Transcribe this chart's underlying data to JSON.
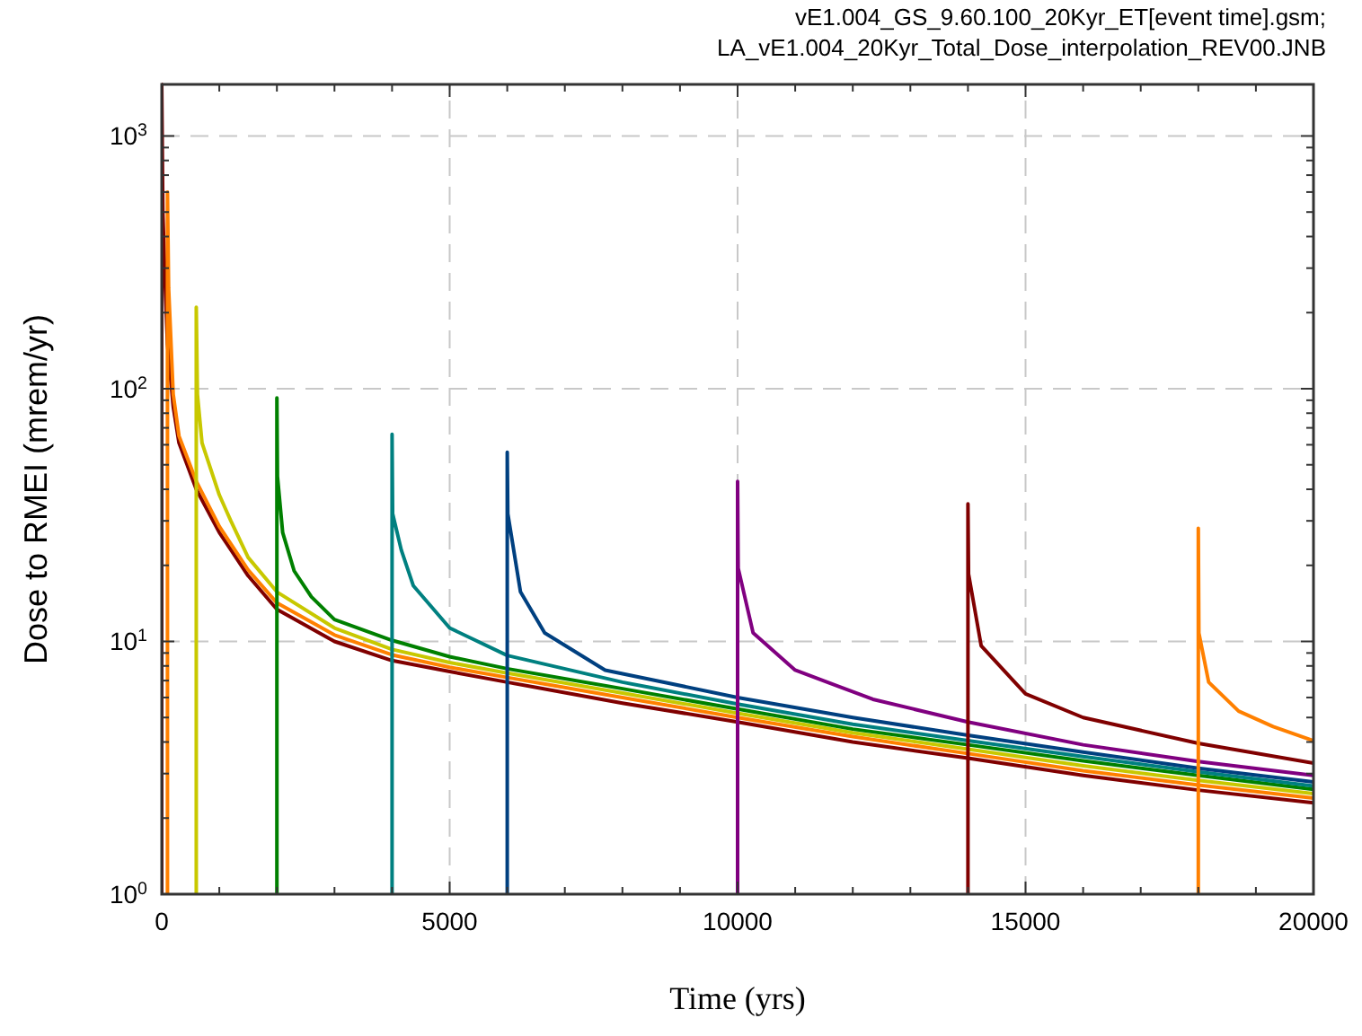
{
  "chart_data": {
    "type": "line",
    "title": "vE1.004_GS_9.60.100_20Kyr_ET[event time].gsm;",
    "subtitle": "LA_vE1.004_20Kyr_Total_Dose_interpolation_REV00.JNB",
    "xlabel": "Time (yrs)",
    "ylabel": "Dose to RMEI (mrem/yr)",
    "log": "y",
    "grid": true,
    "marker": "none",
    "line_style": "solid",
    "xlim": [
      0,
      20000
    ],
    "ylim": [
      1,
      1600
    ],
    "xticks": [
      0,
      {
        "value": 1000,
        "label": null
      },
      {
        "value": 2000,
        "label": null
      },
      {
        "value": 3000,
        "label": null
      },
      {
        "value": 4000,
        "label": null
      },
      5000,
      {
        "value": 6000,
        "label": null
      },
      {
        "value": 7000,
        "label": null
      },
      {
        "value": 8000,
        "label": null
      },
      {
        "value": 9000,
        "label": null
      },
      10000,
      {
        "value": 11000,
        "label": null
      },
      {
        "value": 12000,
        "label": null
      },
      {
        "value": 13000,
        "label": null
      },
      {
        "value": 14000,
        "label": null
      },
      15000,
      {
        "value": 16000,
        "label": null
      },
      {
        "value": 17000,
        "label": null
      },
      {
        "value": 18000,
        "label": null
      },
      {
        "value": 19000,
        "label": null
      },
      20000
    ],
    "yticks": [
      {
        "value": 1,
        "label": "10$^{0}$"
      },
      {
        "value": 2,
        "label": null
      },
      {
        "value": 3,
        "label": null
      },
      {
        "value": 4,
        "label": null
      },
      {
        "value": 5,
        "label": null
      },
      {
        "value": 6,
        "label": null
      },
      {
        "value": 7,
        "label": null
      },
      {
        "value": 8,
        "label": null
      },
      {
        "value": 9,
        "label": null
      },
      {
        "value": 10,
        "label": "10$^{1}$"
      },
      {
        "value": 20,
        "label": null
      },
      {
        "value": 30,
        "label": null
      },
      {
        "value": 40,
        "label": null
      },
      {
        "value": 50,
        "label": null
      },
      {
        "value": 60,
        "label": null
      },
      {
        "value": 70,
        "label": null
      },
      {
        "value": 80,
        "label": null
      },
      {
        "value": 90,
        "label": null
      },
      {
        "value": 100,
        "label": "10$^{2}$"
      },
      {
        "value": 200,
        "label": null
      },
      {
        "value": 300,
        "label": null
      },
      {
        "value": 400,
        "label": null
      },
      {
        "value": 500,
        "label": null
      },
      {
        "value": 600,
        "label": null
      },
      {
        "value": 700,
        "label": null
      },
      {
        "value": 800,
        "label": null
      },
      {
        "value": 900,
        "label": null
      },
      {
        "value": 1000,
        "label": "10$^{3}$"
      }
    ],
    "series": [
      {
        "color": "#800000",
        "x": [
          0,
          0,
          20,
          50,
          100,
          200,
          300,
          600,
          1000,
          1500,
          2000,
          3000,
          4000,
          5000,
          6000,
          8000,
          10000,
          12000,
          14000,
          16000,
          18000,
          20000
        ],
        "values": [
          1,
          1600,
          500,
          300,
          150,
          85,
          61,
          40,
          27,
          18.2,
          13.4,
          10,
          8.4,
          7.6,
          6.9,
          5.7,
          4.8,
          4,
          3.45,
          2.95,
          2.58,
          2.3
        ]
      },
      {
        "color": "#ff8000",
        "x": [
          100,
          100,
          120,
          200,
          300,
          600,
          1000,
          1500,
          2000,
          3000,
          4000,
          5000,
          6000,
          8000,
          10000,
          12000,
          14000,
          16000,
          18000,
          20000
        ],
        "values": [
          1,
          600,
          250,
          95,
          65,
          43,
          28.5,
          19.2,
          14.2,
          10.6,
          8.85,
          7.9,
          7.2,
          6,
          5,
          4.2,
          3.6,
          3.08,
          2.7,
          2.4
        ]
      },
      {
        "color": "#c8c800",
        "x": [
          600,
          600,
          620,
          700,
          1000,
          1200,
          1500,
          2000,
          3000,
          4000,
          5000,
          6000,
          8000,
          10000,
          12000,
          14000,
          16000,
          18000,
          20000
        ],
        "values": [
          1,
          210,
          95,
          61,
          38,
          30,
          21.5,
          15.7,
          11.3,
          9.3,
          8.25,
          7.5,
          6.25,
          5.2,
          4.35,
          3.75,
          3.22,
          2.82,
          2.5
        ]
      },
      {
        "color": "#008000",
        "x": [
          2000,
          2000,
          2010,
          2100,
          2300,
          2600,
          3000,
          4000,
          5000,
          6000,
          8000,
          10000,
          12000,
          14000,
          16000,
          18000,
          20000
        ],
        "values": [
          1,
          92,
          45,
          27,
          19,
          15,
          12.2,
          10.1,
          8.7,
          7.8,
          6.5,
          5.4,
          4.5,
          3.9,
          3.37,
          2.95,
          2.6
        ]
      },
      {
        "color": "#008080",
        "x": [
          4000,
          4000,
          4010,
          4160,
          4370,
          5000,
          6000,
          8000,
          10000,
          12000,
          14000,
          16000,
          18000,
          20000
        ],
        "values": [
          1,
          66,
          32,
          23,
          16.6,
          11.3,
          8.8,
          6.9,
          5.65,
          4.7,
          4.05,
          3.5,
          3.05,
          2.68
        ]
      },
      {
        "color": "#004080",
        "x": [
          6000,
          6000,
          6010,
          6230,
          6650,
          7700,
          10000,
          12000,
          14000,
          16000,
          18000,
          20000
        ],
        "values": [
          1,
          56,
          32,
          15.7,
          10.8,
          7.7,
          6,
          5,
          4.25,
          3.65,
          3.15,
          2.78
        ]
      },
      {
        "color": "#800080",
        "x": [
          10000,
          10000,
          10010,
          10270,
          11000,
          12350,
          14000,
          16000,
          18000,
          20000
        ],
        "values": [
          1,
          43,
          19.5,
          10.8,
          7.7,
          5.9,
          4.8,
          3.9,
          3.35,
          2.95
        ]
      },
      {
        "color": "#800000",
        "x": [
          14000,
          14000,
          14010,
          14230,
          15000,
          16000,
          18000,
          20000
        ],
        "values": [
          1,
          35,
          18.5,
          9.6,
          6.2,
          5,
          3.95,
          3.3
        ]
      },
      {
        "color": "#ff8000",
        "x": [
          18000,
          18000,
          18010,
          18180,
          18700,
          19300,
          20000
        ],
        "values": [
          1,
          28,
          10.8,
          6.9,
          5.3,
          4.6,
          4.05
        ]
      }
    ]
  }
}
